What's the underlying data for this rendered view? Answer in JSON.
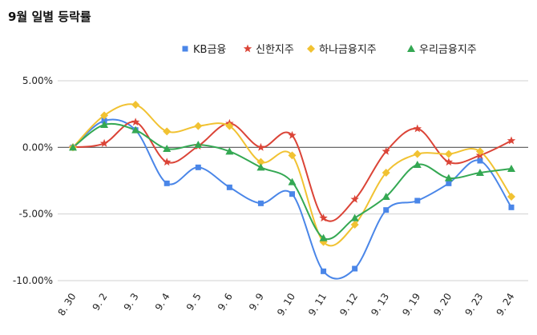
{
  "chart_data": {
    "type": "line",
    "title": "9월 일별 등락률",
    "categories": [
      "8. 30",
      "9. 2",
      "9. 3",
      "9. 4",
      "9. 5",
      "9. 6",
      "9. 9",
      "9. 10",
      "9. 11",
      "9. 12",
      "9. 13",
      "9. 19",
      "9. 20",
      "9. 23",
      "9. 24"
    ],
    "y_ticks": [
      "5.00%",
      "0.00%",
      "-5.00%",
      "-10.00%"
    ],
    "ylim": [
      -10,
      5
    ],
    "grid": "horizontal",
    "legend_position": "top-right",
    "series": [
      {
        "name": "KB금융",
        "color": "#4a86e8",
        "marker": "square",
        "values": [
          0.0,
          2.0,
          1.3,
          -2.7,
          -1.5,
          -3.0,
          -4.2,
          -3.5,
          -9.3,
          -9.1,
          -4.7,
          -4.0,
          -2.7,
          -1.0,
          -4.5
        ]
      },
      {
        "name": "신한지주",
        "color": "#db4437",
        "marker": "star",
        "values": [
          0.0,
          0.3,
          1.9,
          -1.1,
          0.1,
          1.8,
          0.0,
          0.9,
          -5.3,
          -3.9,
          -0.3,
          1.4,
          -1.1,
          -0.6,
          0.5
        ]
      },
      {
        "name": "하나금융지주",
        "color": "#f1c232",
        "marker": "diamond",
        "values": [
          0.0,
          2.4,
          3.2,
          1.2,
          1.6,
          1.6,
          -1.1,
          -0.6,
          -7.1,
          -5.8,
          -1.9,
          -0.5,
          -0.5,
          -0.3,
          -3.7
        ]
      },
      {
        "name": "우리금융지주",
        "color": "#34a853",
        "marker": "triangle",
        "values": [
          0.0,
          1.7,
          1.3,
          -0.1,
          0.2,
          -0.3,
          -1.5,
          -2.6,
          -6.8,
          -5.3,
          -3.7,
          -1.3,
          -2.3,
          -1.9,
          -1.6
        ]
      }
    ]
  }
}
